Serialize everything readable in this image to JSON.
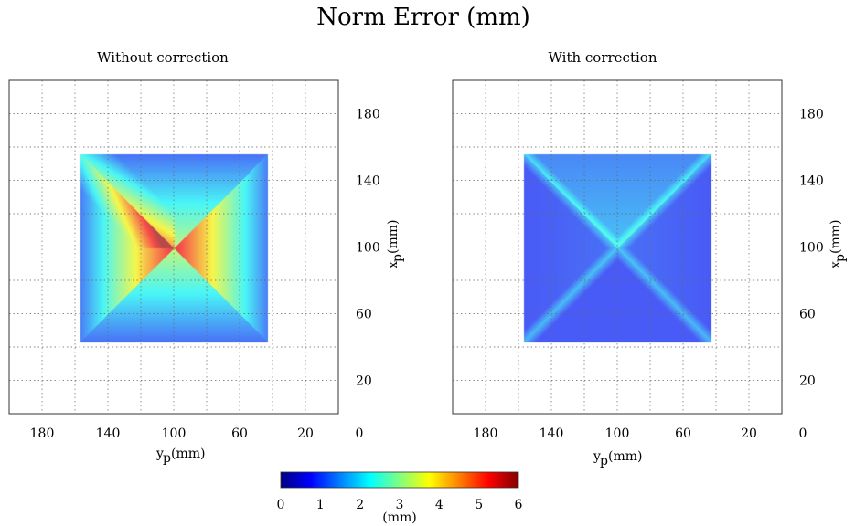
{
  "chart_data": {
    "type": "heatmap",
    "title": "Norm Error (mm)",
    "panels": [
      {
        "subtitle": "Without correction",
        "xlabel": "y_p (mm)",
        "ylabel": "x_p (mm)",
        "xticks": [
          180,
          140,
          100,
          60,
          20,
          0
        ],
        "yticks": [
          180,
          140,
          100,
          60,
          20
        ],
        "xlim": [
          200,
          0
        ],
        "ylim": [
          0,
          200
        ],
        "x_reversed": true,
        "grid": true,
        "data_extent": {
          "y_p": [
            157,
            43
          ],
          "x_p": [
            43,
            156
          ]
        },
        "error_at": {
          "center": 5.4,
          "upper_left_diagonal": 5.6,
          "left_midpoint": 4.6,
          "right_midpoint": 4.3,
          "top_midpoint": 2.2,
          "bottom_midpoint": 2.2,
          "corners": 1.0
        }
      },
      {
        "subtitle": "With correction",
        "xlabel": "y_p (mm)",
        "ylabel": "x_p (mm)",
        "xticks": [
          180,
          140,
          100,
          60,
          20,
          0
        ],
        "yticks": [
          180,
          140,
          100,
          60,
          20
        ],
        "xlim": [
          200,
          0
        ],
        "ylim": [
          0,
          200
        ],
        "x_reversed": true,
        "grid": true,
        "data_extent": {
          "y_p": [
            157,
            43
          ],
          "x_p": [
            43,
            156
          ]
        },
        "error_at": {
          "center": 1.9,
          "diagonals": 1.9,
          "top_triangle": 1.8,
          "bottom_triangle": 0.9,
          "side_triangles": 1.1,
          "corners": 0.7
        }
      }
    ],
    "colorbar": {
      "label": "(mm)",
      "ticks": [
        0,
        1,
        2,
        3,
        4,
        5,
        6
      ],
      "range": [
        0,
        6
      ],
      "colormap": "jet"
    }
  }
}
